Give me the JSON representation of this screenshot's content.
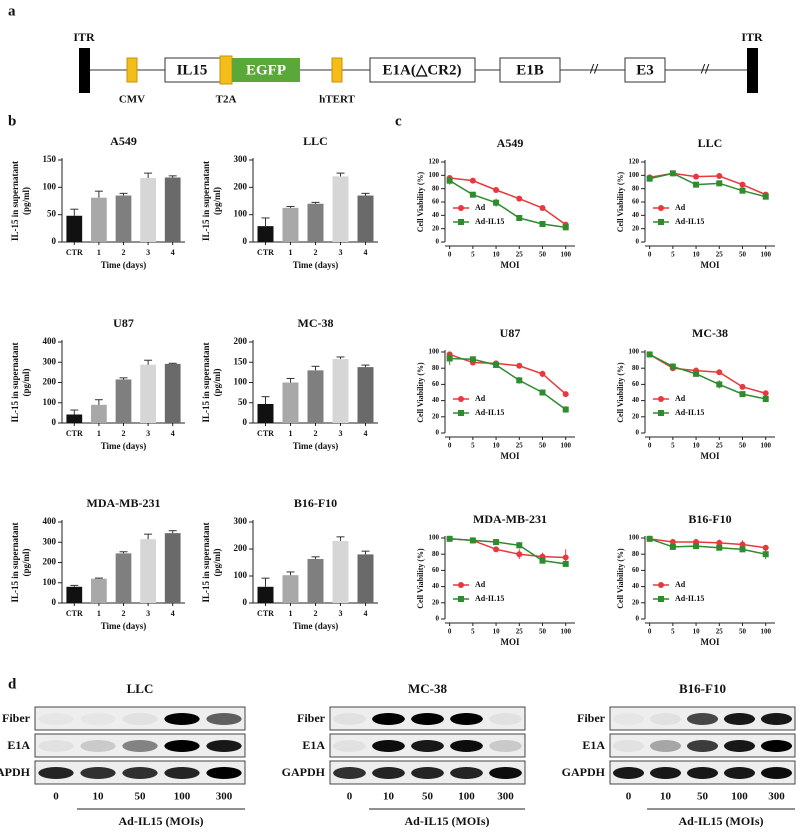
{
  "panel_labels": [
    "a",
    "b",
    "c",
    "d"
  ],
  "panel_a": {
    "itr_left": "ITR",
    "cmv": "CMV",
    "il15": "IL15",
    "t2a": "T2A",
    "egfp": "EGFP",
    "htert": "hTERT",
    "e1a": "E1A(△CR2)",
    "e1b": "E1B",
    "break1": "//",
    "e3": "E3",
    "break2": "//",
    "itr_right": "ITR"
  },
  "chart_data": [
    {
      "type": "bar",
      "title": "A549",
      "categories": [
        "CTR",
        "1",
        "2",
        "3",
        "4"
      ],
      "values": [
        48,
        81,
        85,
        117,
        118
      ],
      "errors": [
        12,
        12,
        4,
        9,
        3
      ],
      "colors": [
        "#111111",
        "#a8a8a8",
        "#7f7f7f",
        "#d6d6d6",
        "#6a6a6a"
      ],
      "xlabel": "Time (days)",
      "ylabel": [
        "IL-15 in supernatant",
        "(pg/ml)"
      ],
      "ylim": [
        0,
        150
      ],
      "yticks": [
        0,
        50,
        100,
        150
      ]
    },
    {
      "type": "bar",
      "title": "LLC",
      "categories": [
        "CTR",
        "1",
        "2",
        "3",
        "4"
      ],
      "values": [
        58,
        125,
        140,
        240,
        170
      ],
      "errors": [
        30,
        5,
        5,
        12,
        8
      ],
      "colors": [
        "#111111",
        "#a8a8a8",
        "#7f7f7f",
        "#d6d6d6",
        "#6a6a6a"
      ],
      "xlabel": "Time (days)",
      "ylabel": [
        "IL-15 in supernatant",
        "(pg/ml)"
      ],
      "ylim": [
        0,
        300
      ],
      "yticks": [
        0,
        100,
        200,
        300
      ]
    },
    {
      "type": "bar",
      "title": "U87",
      "categories": [
        "CTR",
        "1",
        "2",
        "3",
        "4"
      ],
      "values": [
        42,
        90,
        215,
        288,
        292
      ],
      "errors": [
        22,
        25,
        8,
        22,
        3
      ],
      "colors": [
        "#111111",
        "#a8a8a8",
        "#7f7f7f",
        "#d6d6d6",
        "#6a6a6a"
      ],
      "xlabel": "Time (days)",
      "ylabel": [
        "IL-15 in supernatant",
        "(pg/ml)"
      ],
      "ylim": [
        0,
        400
      ],
      "yticks": [
        0,
        100,
        200,
        300,
        400
      ]
    },
    {
      "type": "bar",
      "title": "MC-38",
      "categories": [
        "CTR",
        "1",
        "2",
        "3",
        "4"
      ],
      "values": [
        47,
        100,
        130,
        158,
        138
      ],
      "errors": [
        18,
        10,
        10,
        5,
        5
      ],
      "colors": [
        "#111111",
        "#a8a8a8",
        "#7f7f7f",
        "#d6d6d6",
        "#6a6a6a"
      ],
      "xlabel": "Time (days)",
      "ylabel": [
        "IL-15 in supernatant",
        "(pg/ml)"
      ],
      "ylim": [
        0,
        200
      ],
      "yticks": [
        0,
        50,
        100,
        150,
        200
      ]
    },
    {
      "type": "bar",
      "title": "MDA-MB-231",
      "categories": [
        "CTR",
        "1",
        "2",
        "3",
        "4"
      ],
      "values": [
        80,
        120,
        245,
        315,
        345
      ],
      "errors": [
        7,
        3,
        8,
        25,
        12
      ],
      "colors": [
        "#111111",
        "#a8a8a8",
        "#7f7f7f",
        "#d6d6d6",
        "#6a6a6a"
      ],
      "xlabel": "Time (days)",
      "ylabel": [
        "IL-15 in supernatant",
        "(pg/ml)"
      ],
      "ylim": [
        0,
        400
      ],
      "yticks": [
        0,
        100,
        200,
        300,
        400
      ]
    },
    {
      "type": "bar",
      "title": "B16-F10",
      "categories": [
        "CTR",
        "1",
        "2",
        "3",
        "4"
      ],
      "values": [
        60,
        103,
        163,
        230,
        180
      ],
      "errors": [
        32,
        12,
        8,
        15,
        12
      ],
      "colors": [
        "#111111",
        "#a8a8a8",
        "#7f7f7f",
        "#d6d6d6",
        "#6a6a6a"
      ],
      "xlabel": "Time (days)",
      "ylabel": [
        "IL-15 in supernatant",
        "(pg/ml)"
      ],
      "ylim": [
        0,
        300
      ],
      "yticks": [
        0,
        100,
        200,
        300
      ]
    },
    {
      "type": "line",
      "title": "A549",
      "categories": [
        "0",
        "5",
        "10",
        "25",
        "50",
        "100"
      ],
      "xlabel": "MOI",
      "ylabel": "Cell Viability (%)",
      "ylim": [
        0,
        120
      ],
      "yticks": [
        0,
        20,
        40,
        60,
        80,
        100,
        120
      ],
      "series": [
        {
          "name": "Ad",
          "color": "#e8383d",
          "values": [
            96,
            92,
            78,
            65,
            51,
            26
          ],
          "errors": [
            3,
            4,
            4,
            3,
            2,
            2
          ]
        },
        {
          "name": "Ad-IL15",
          "color": "#2e8b2e",
          "values": [
            92,
            71,
            59,
            36,
            27,
            22
          ],
          "errors": [
            6,
            3,
            6,
            2,
            2,
            4
          ]
        }
      ]
    },
    {
      "type": "line",
      "title": "LLC",
      "categories": [
        "0",
        "5",
        "10",
        "25",
        "50",
        "100"
      ],
      "xlabel": "MOI",
      "ylabel": "Cell Viability (%)",
      "ylim": [
        0,
        120
      ],
      "yticks": [
        0,
        20,
        40,
        60,
        80,
        100,
        120
      ],
      "series": [
        {
          "name": "Ad",
          "color": "#e8383d",
          "values": [
            97,
            103,
            98,
            99,
            86,
            71
          ],
          "errors": [
            3,
            3,
            2,
            2,
            3,
            3
          ]
        },
        {
          "name": "Ad-IL15",
          "color": "#2e8b2e",
          "values": [
            95,
            103,
            86,
            88,
            77,
            68
          ],
          "errors": [
            3,
            4,
            4,
            3,
            4,
            2
          ]
        }
      ]
    },
    {
      "type": "line",
      "title": "U87",
      "categories": [
        "0",
        "5",
        "10",
        "25",
        "50",
        "100"
      ],
      "xlabel": "MOI",
      "ylabel": "Cell Viability (%)",
      "ylim": [
        0,
        100
      ],
      "yticks": [
        0,
        20,
        40,
        60,
        80,
        100
      ],
      "series": [
        {
          "name": "Ad",
          "color": "#e8383d",
          "values": [
            97,
            87,
            86,
            83,
            73,
            48
          ],
          "errors": [
            2,
            3,
            2,
            2,
            4,
            2
          ]
        },
        {
          "name": "Ad-IL15",
          "color": "#2e8b2e",
          "values": [
            92,
            91,
            84,
            65,
            50,
            29
          ],
          "errors": [
            8,
            2,
            3,
            4,
            2,
            4
          ]
        }
      ]
    },
    {
      "type": "line",
      "title": "MC-38",
      "categories": [
        "0",
        "5",
        "10",
        "25",
        "50",
        "100"
      ],
      "xlabel": "MOI",
      "ylabel": "Cell Viability (%)",
      "ylim": [
        0,
        100
      ],
      "yticks": [
        0,
        20,
        40,
        60,
        80,
        100
      ],
      "series": [
        {
          "name": "Ad",
          "color": "#e8383d",
          "values": [
            97,
            80,
            77,
            75,
            57,
            49
          ],
          "errors": [
            2,
            3,
            4,
            3,
            2,
            2
          ]
        },
        {
          "name": "Ad-IL15",
          "color": "#2e8b2e",
          "values": [
            97,
            82,
            73,
            60,
            48,
            42
          ],
          "errors": [
            2,
            4,
            2,
            5,
            2,
            2
          ]
        }
      ]
    },
    {
      "type": "line",
      "title": "MDA-MB-231",
      "categories": [
        "0",
        "5",
        "10",
        "25",
        "50",
        "100"
      ],
      "xlabel": "MOI",
      "ylabel": "Cell Viability (%)",
      "ylim": [
        0,
        100
      ],
      "yticks": [
        0,
        20,
        40,
        60,
        80,
        100
      ],
      "series": [
        {
          "name": "Ad",
          "color": "#e8383d",
          "values": [
            99,
            97,
            86,
            80,
            77,
            76
          ],
          "errors": [
            2,
            2,
            2,
            6,
            5,
            10
          ]
        },
        {
          "name": "Ad-IL15",
          "color": "#2e8b2e",
          "values": [
            99,
            97,
            95,
            91,
            72,
            68
          ],
          "errors": [
            2,
            2,
            2,
            4,
            2,
            2
          ]
        }
      ]
    },
    {
      "type": "line",
      "title": "B16-F10",
      "categories": [
        "0",
        "5",
        "10",
        "25",
        "50",
        "100"
      ],
      "xlabel": "MOI",
      "ylabel": "Cell Viability (%)",
      "ylim": [
        0,
        100
      ],
      "yticks": [
        0,
        20,
        40,
        60,
        80,
        100
      ],
      "series": [
        {
          "name": "Ad",
          "color": "#e8383d",
          "values": [
            99,
            95,
            95,
            94,
            92,
            88
          ],
          "errors": [
            2,
            4,
            3,
            4,
            5,
            3
          ]
        },
        {
          "name": "Ad-IL15",
          "color": "#2e8b2e",
          "values": [
            99,
            89,
            90,
            88,
            86,
            80
          ],
          "errors": [
            2,
            3,
            2,
            2,
            3,
            6
          ]
        }
      ]
    }
  ],
  "panel_d": {
    "blots": [
      {
        "title": "LLC",
        "rows": [
          "Fiber",
          "E1A",
          "GAPDH"
        ],
        "lanes": [
          "0",
          "10",
          "50",
          "100",
          "300"
        ],
        "xlabel": "Ad-IL15 (MOIs)"
      },
      {
        "title": "MC-38",
        "rows": [
          "Fiber",
          "E1A",
          "GAPDH"
        ],
        "lanes": [
          "0",
          "10",
          "50",
          "100",
          "300"
        ],
        "xlabel": "Ad-IL15 (MOIs)"
      },
      {
        "title": "B16-F10",
        "rows": [
          "Fiber",
          "E1A",
          "GAPDH"
        ],
        "lanes": [
          "0",
          "10",
          "50",
          "100",
          "300"
        ],
        "xlabel": "Ad-IL15 (MOIs)"
      }
    ]
  }
}
